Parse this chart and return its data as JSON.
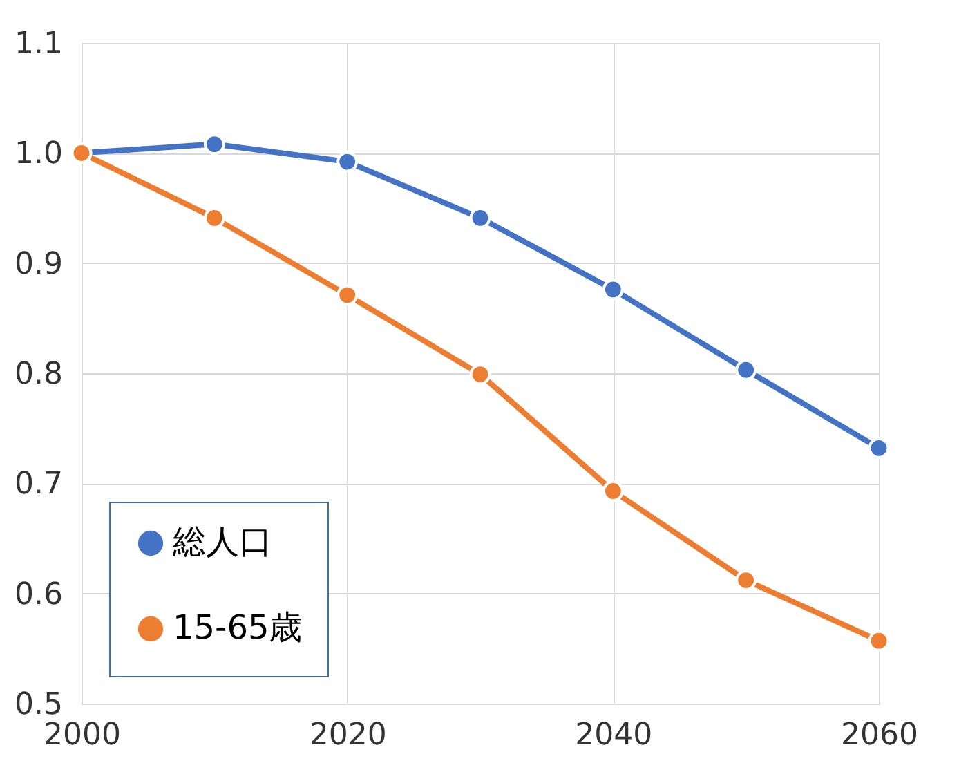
{
  "chart_data": {
    "type": "line",
    "x": [
      2000,
      2010,
      2020,
      2030,
      2040,
      2050,
      2060
    ],
    "series": [
      {
        "name": "総人口",
        "color": "#4472c4",
        "values": [
          1.0,
          1.008,
          0.992,
          0.941,
          0.876,
          0.803,
          0.732
        ]
      },
      {
        "name": "15-65歳",
        "color": "#ed7d31",
        "values": [
          1.0,
          0.941,
          0.871,
          0.799,
          0.693,
          0.612,
          0.557
        ]
      }
    ],
    "xlim": [
      2000,
      2060
    ],
    "xticks": [
      2000,
      2020,
      2040,
      2060
    ],
    "ylim": [
      0.5,
      1.1
    ],
    "yticks": [
      0.5,
      0.6,
      0.7,
      0.8,
      0.9,
      {
        "value": 1,
        "label": "1.0"
      },
      1.1
    ],
    "grid": true,
    "legend": "bottom left",
    "marker": "circle",
    "line_style": "solid"
  }
}
